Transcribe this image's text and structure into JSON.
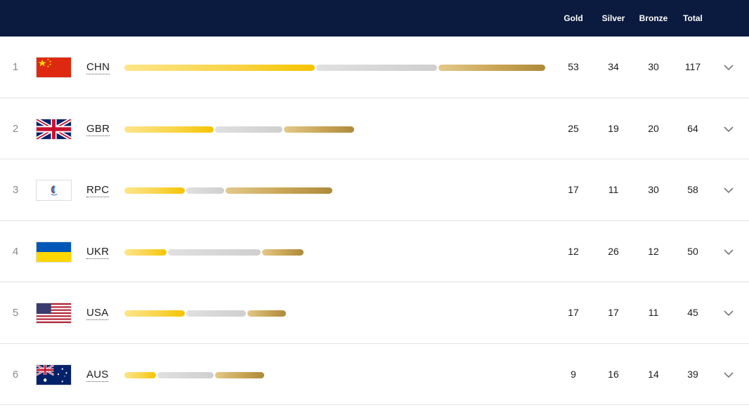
{
  "header": {
    "columns": {
      "gold": "Gold",
      "silver": "Silver",
      "bronze": "Bronze",
      "total": "Total"
    }
  },
  "colors": {
    "header_bg": "#0b1b3f",
    "gold": "#f5c400",
    "silver": "#cfcfcf",
    "bronze": "#ad8a3b"
  },
  "rows": [
    {
      "rank": "1",
      "code": "CHN",
      "flag": "china-flag-icon",
      "gold": "53",
      "silver": "34",
      "bronze": "30",
      "total": "117"
    },
    {
      "rank": "2",
      "code": "GBR",
      "flag": "uk-flag-icon",
      "gold": "25",
      "silver": "19",
      "bronze": "20",
      "total": "64"
    },
    {
      "rank": "3",
      "code": "RPC",
      "flag": "rpc-flag-icon",
      "gold": "17",
      "silver": "11",
      "bronze": "30",
      "total": "58"
    },
    {
      "rank": "4",
      "code": "UKR",
      "flag": "ukraine-flag-icon",
      "gold": "12",
      "silver": "26",
      "bronze": "12",
      "total": "50"
    },
    {
      "rank": "5",
      "code": "USA",
      "flag": "usa-flag-icon",
      "gold": "17",
      "silver": "17",
      "bronze": "11",
      "total": "45"
    },
    {
      "rank": "6",
      "code": "AUS",
      "flag": "australia-flag-icon",
      "gold": "9",
      "silver": "16",
      "bronze": "14",
      "total": "39"
    }
  ],
  "expand_icon": "chevron-down-icon"
}
